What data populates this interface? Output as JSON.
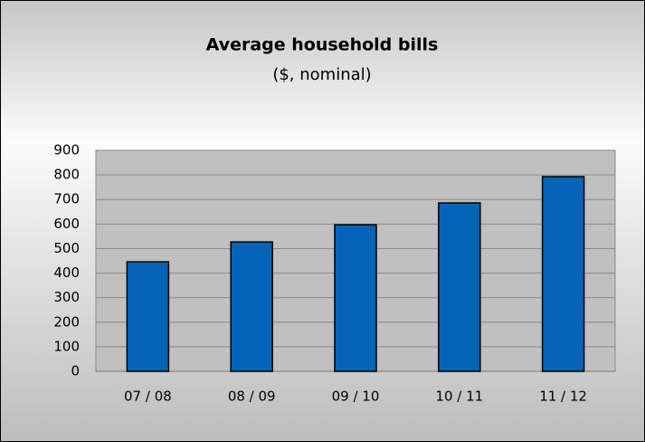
{
  "chart_data": {
    "type": "bar",
    "title": "Average household bills",
    "subtitle": "($, nominal)",
    "categories": [
      "07 / 08",
      "08 / 09",
      "09 / 10",
      "10 / 11",
      "11 / 12"
    ],
    "values": [
      446,
      527,
      597,
      686,
      793
    ],
    "color": "#0563b8",
    "ylim": [
      0,
      900
    ],
    "yticks": [
      0,
      100,
      200,
      300,
      400,
      500,
      600,
      700,
      800,
      900
    ],
    "grid": true
  }
}
